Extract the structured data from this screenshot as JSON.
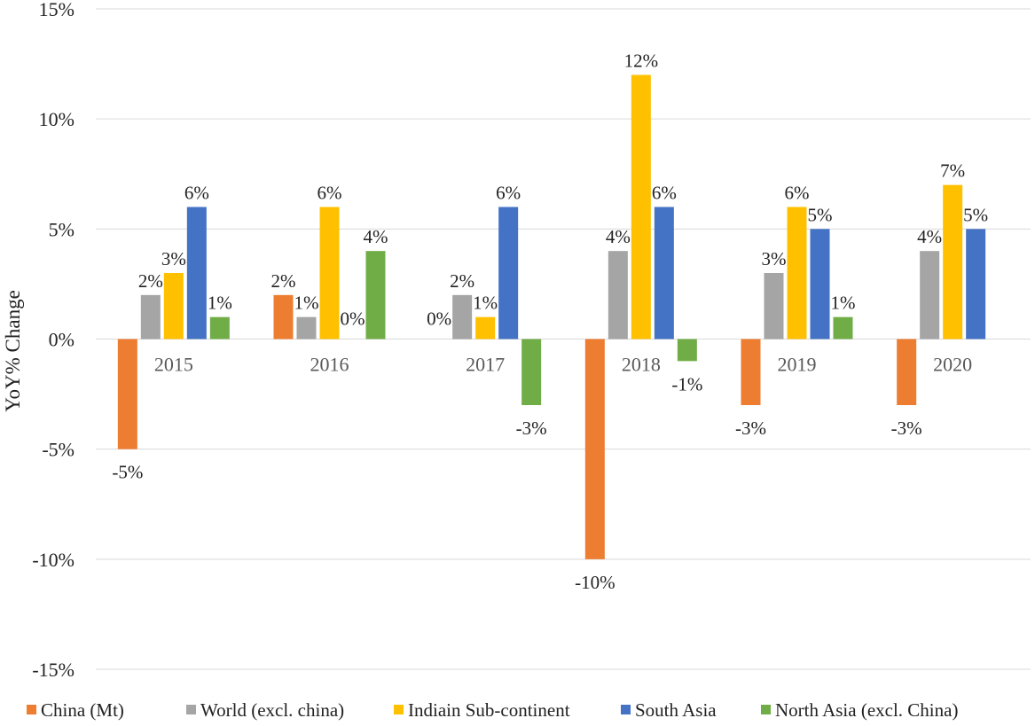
{
  "chart_data": {
    "type": "bar",
    "title": "",
    "xlabel": "",
    "ylabel": "YoY% Change",
    "ylim": [
      -15,
      15
    ],
    "yticks": [
      15,
      10,
      5,
      0,
      -5,
      -10,
      -15
    ],
    "ytick_labels": [
      "15%",
      "10%",
      "5%",
      "0%",
      "-5%",
      "-10%",
      "-15%"
    ],
    "categories": [
      "2015",
      "2016",
      "2017",
      "2018",
      "2019",
      "2020"
    ],
    "series": [
      {
        "name": "China (Mt)",
        "color": "#ED7D31",
        "values": [
          -5,
          2,
          0,
          -10,
          -3,
          -3
        ],
        "labels": [
          "-5%",
          "2%",
          "0%",
          "-10%",
          "-3%",
          "-3%"
        ]
      },
      {
        "name": "World (excl. china)",
        "color": "#A5A5A5",
        "values": [
          2,
          1,
          2,
          4,
          3,
          4
        ],
        "labels": [
          "2%",
          "1%",
          "2%",
          "4%",
          "3%",
          "4%"
        ]
      },
      {
        "name": "Indiain Sub-continent",
        "color": "#FFC000",
        "values": [
          3,
          6,
          1,
          12,
          6,
          7
        ],
        "labels": [
          "3%",
          "6%",
          "1%",
          "12%",
          "6%",
          "7%"
        ]
      },
      {
        "name": "South Asia",
        "color": "#4472C4",
        "values": [
          6,
          0,
          6,
          6,
          5,
          5
        ],
        "labels": [
          "6%",
          "0%",
          "6%",
          "6%",
          "5%",
          "5%"
        ]
      },
      {
        "name": "North Asia (excl. China)",
        "color": "#70AD47",
        "values": [
          1,
          4,
          -3,
          -1,
          1,
          null
        ],
        "labels": [
          "1%",
          "4%",
          "-3%",
          "-1%",
          "1%",
          null
        ]
      }
    ],
    "grid": true,
    "legend": "bottom"
  }
}
